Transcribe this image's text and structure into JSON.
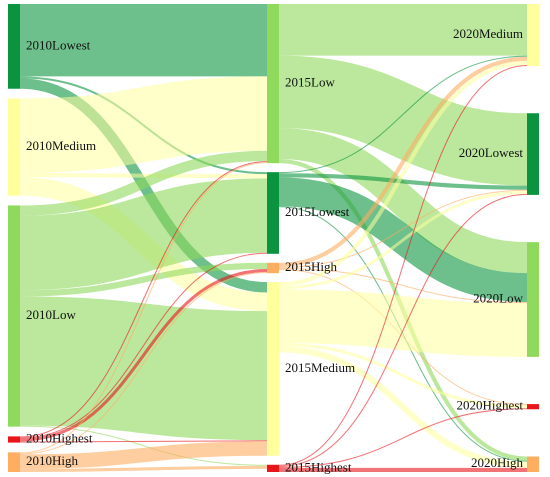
{
  "colors": {
    "lowest": "#0b9440",
    "low": "#8fd95c",
    "medium": "#ffff9c",
    "high": "#fdae61",
    "highest": "#e8161a"
  },
  "nodes": [
    {
      "id": "2010Lowest",
      "label": "2010Lowest",
      "category": "lowest",
      "stage": 0
    },
    {
      "id": "2010Medium",
      "label": "2010Medium",
      "category": "medium",
      "stage": 0
    },
    {
      "id": "2010Low",
      "label": "2010Low",
      "category": "low",
      "stage": 0
    },
    {
      "id": "2010Highest",
      "label": "2010Highest",
      "category": "highest",
      "stage": 0
    },
    {
      "id": "2010High",
      "label": "2010High",
      "category": "high",
      "stage": 0
    },
    {
      "id": "2015Low",
      "label": "2015Low",
      "category": "low",
      "stage": 1
    },
    {
      "id": "2015Lowest",
      "label": "2015Lowest",
      "category": "lowest",
      "stage": 1
    },
    {
      "id": "2015High",
      "label": "2015High",
      "category": "high",
      "stage": 1
    },
    {
      "id": "2015Medium",
      "label": "2015Medium",
      "category": "medium",
      "stage": 1
    },
    {
      "id": "2015Highest",
      "label": "2015Highest",
      "category": "highest",
      "stage": 1
    },
    {
      "id": "2020Medium",
      "label": "2020Medium",
      "category": "medium",
      "stage": 2
    },
    {
      "id": "2020Lowest",
      "label": "2020Lowest",
      "category": "lowest",
      "stage": 2
    },
    {
      "id": "2020Low",
      "label": "2020Low",
      "category": "low",
      "stage": 2
    },
    {
      "id": "2020Highest",
      "label": "2020Highest",
      "category": "highest",
      "stage": 2
    },
    {
      "id": "2020High",
      "label": "2020High",
      "category": "high",
      "stage": 2
    }
  ],
  "links": [
    {
      "source": "2010Lowest",
      "target": "2015Low",
      "value": 70
    },
    {
      "source": "2010Lowest",
      "target": "2015Lowest",
      "value": 2
    },
    {
      "source": "2010Lowest",
      "target": "2015Medium",
      "value": 10
    },
    {
      "source": "2010Medium",
      "target": "2015Low",
      "value": 72
    },
    {
      "source": "2010Medium",
      "target": "2015Lowest",
      "value": 4
    },
    {
      "source": "2010Medium",
      "target": "2015Medium",
      "value": 18
    },
    {
      "source": "2010Low",
      "target": "2015Low",
      "value": 10
    },
    {
      "source": "2010Low",
      "target": "2015Lowest",
      "value": 72
    },
    {
      "source": "2010Low",
      "target": "2015High",
      "value": 6
    },
    {
      "source": "2010Low",
      "target": "2015Medium",
      "value": 125
    },
    {
      "source": "2010Low",
      "target": "2015Highest",
      "value": 1
    },
    {
      "source": "2010Highest",
      "target": "2015Low",
      "value": 1
    },
    {
      "source": "2010Highest",
      "target": "2015Lowest",
      "value": 1
    },
    {
      "source": "2010Highest",
      "target": "2015High",
      "value": 3
    },
    {
      "source": "2010Highest",
      "target": "2015Medium",
      "value": 1
    },
    {
      "source": "2010High",
      "target": "2015Low",
      "value": 1
    },
    {
      "source": "2010High",
      "target": "2015High",
      "value": 1
    },
    {
      "source": "2010High",
      "target": "2015Medium",
      "value": 14
    },
    {
      "source": "2010High",
      "target": "2015Highest",
      "value": 3
    },
    {
      "source": "2015Low",
      "target": "2020Medium",
      "value": 50
    },
    {
      "source": "2015Low",
      "target": "2020Lowest",
      "value": 70
    },
    {
      "source": "2015Low",
      "target": "2020Low",
      "value": 30
    },
    {
      "source": "2015Low",
      "target": "2020High",
      "value": 4
    },
    {
      "source": "2015Lowest",
      "target": "2020Medium",
      "value": 1
    },
    {
      "source": "2015Lowest",
      "target": "2020Lowest",
      "value": 4
    },
    {
      "source": "2015Lowest",
      "target": "2020Low",
      "value": 28
    },
    {
      "source": "2015Lowest",
      "target": "2020High",
      "value": 1
    },
    {
      "source": "2015High",
      "target": "2020Medium",
      "value": 4
    },
    {
      "source": "2015High",
      "target": "2020Lowest",
      "value": 1
    },
    {
      "source": "2015High",
      "target": "2020Low",
      "value": 1
    },
    {
      "source": "2015High",
      "target": "2020Highest",
      "value": 1
    },
    {
      "source": "2015Medium",
      "target": "2020Medium",
      "value": 4
    },
    {
      "source": "2015Medium",
      "target": "2020Lowest",
      "value": 3
    },
    {
      "source": "2015Medium",
      "target": "2020Low",
      "value": 52
    },
    {
      "source": "2015Medium",
      "target": "2020Highest",
      "value": 3
    },
    {
      "source": "2015Medium",
      "target": "2020High",
      "value": 6
    },
    {
      "source": "2015Highest",
      "target": "2020Medium",
      "value": 1
    },
    {
      "source": "2015Highest",
      "target": "2020Lowest",
      "value": 1
    },
    {
      "source": "2015Highest",
      "target": "2020Highest",
      "value": 1
    },
    {
      "source": "2015Highest",
      "target": "2020High",
      "value": 4
    }
  ]
}
